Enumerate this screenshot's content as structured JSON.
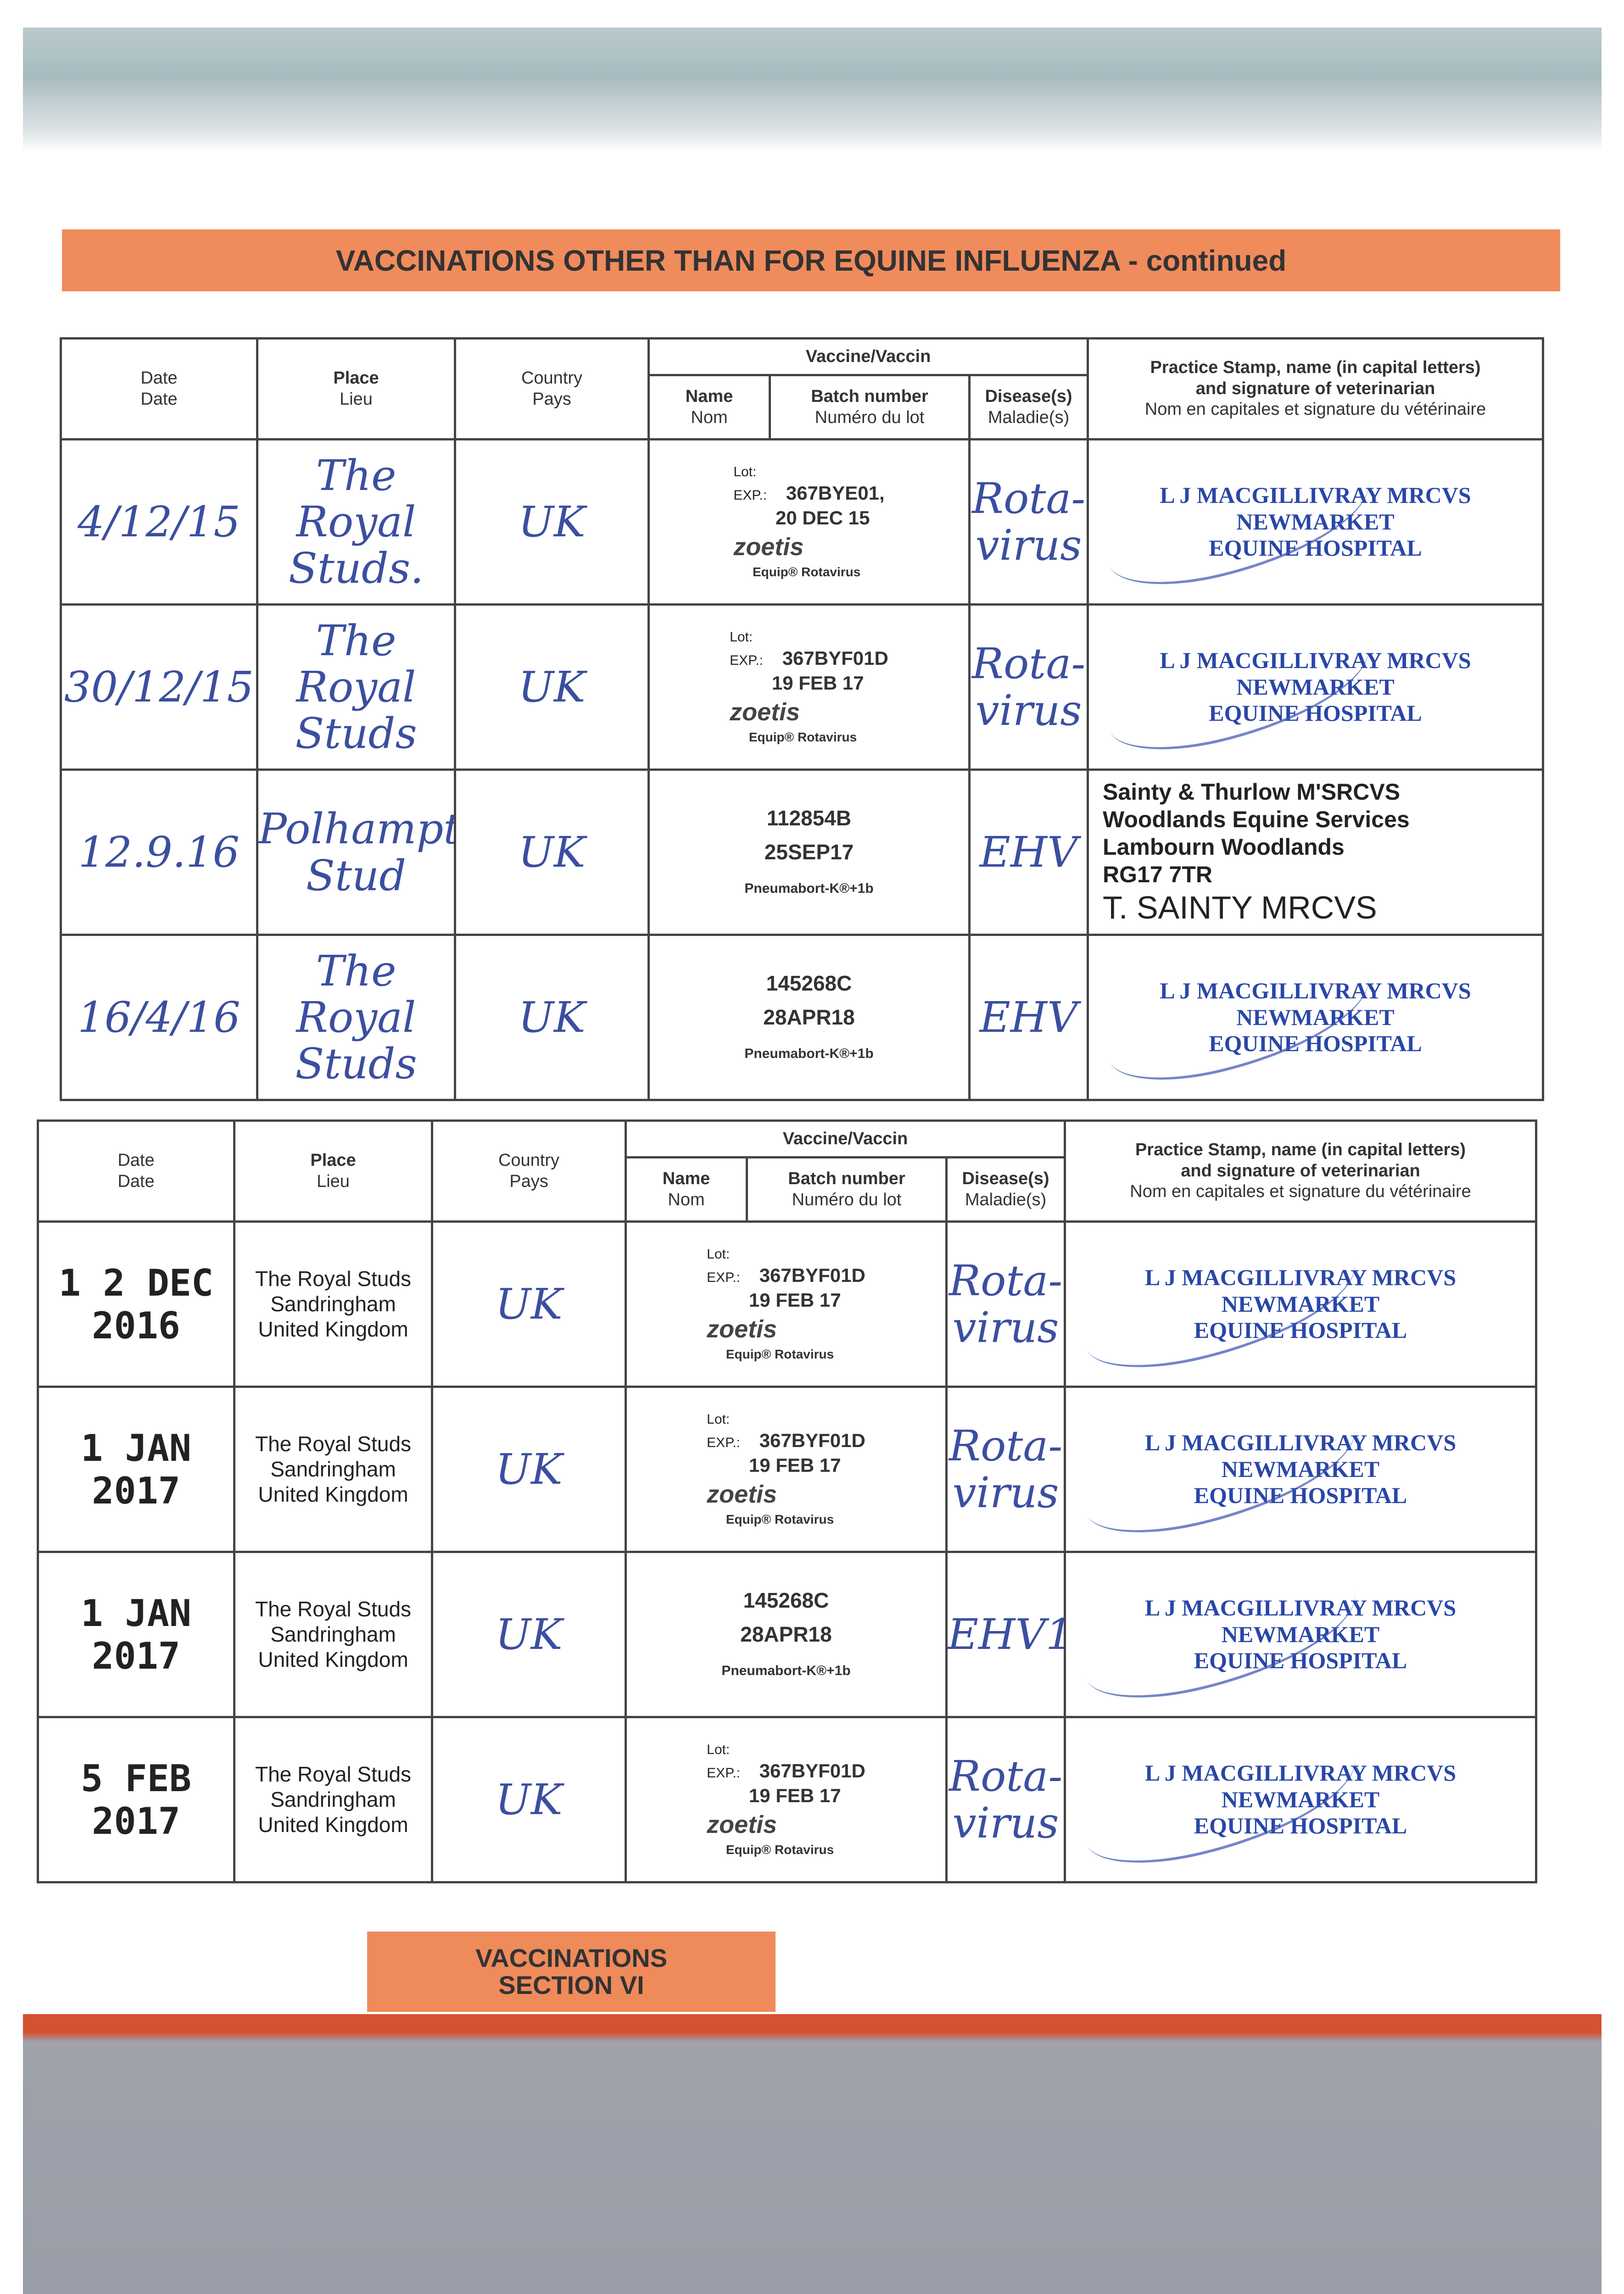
{
  "title": "VACCINATIONS OTHER THAN FOR EQUINE INFLUENZA - continued",
  "headers": {
    "date": "Date",
    "date_fr": "Date",
    "place": "Place",
    "place_fr": "Lieu",
    "country": "Country",
    "country_fr": "Pays",
    "vaccine": "Vaccine/Vaccin",
    "name": "Name",
    "name_fr": "Nom",
    "batch": "Batch number",
    "batch_fr": "Numéro du lot",
    "disease": "Disease(s)",
    "disease_fr": "Maladie(s)",
    "stamp1": "Practice Stamp, name (in capital letters)",
    "stamp2": "and signature of veterinarian",
    "stamp_fr": "Nom en capitales et signature du vétérinaire"
  },
  "label": {
    "lot": "Lot:",
    "exp": "EXP.:",
    "brand": "zoetis",
    "product": "Equip® Rotavirus",
    "pneumabort": "Pneumabort-K®+1b"
  },
  "table1": [
    {
      "date": "4/12/15",
      "place": "The Royal Studs.",
      "country": "UK",
      "batch": "367BYE01,",
      "exp": "20 DEC 15",
      "disease": "Rota-virus",
      "vet": [
        "L J MACGILLIVRAY MRCVS",
        "NEWMARKET",
        "EQUINE HOSPITAL"
      ]
    },
    {
      "date": "30/12/15",
      "place": "The Royal Studs",
      "country": "UK",
      "batch": "367BYF01D",
      "exp": "19 FEB 17",
      "disease": "Rota-virus",
      "vet": [
        "L J MACGILLIVRAY MRCVS",
        "NEWMARKET",
        "EQUINE HOSPITAL"
      ]
    },
    {
      "date": "12.9.16",
      "place": "Polhampton Stud",
      "country": "UK",
      "batch": "112854B",
      "exp": "25SEP17",
      "disease": "EHV",
      "vet": [
        "Sainty & Thurlow M'SRCVS",
        "Woodlands Equine Services",
        "Lambourn Woodlands",
        "RG17 7TR",
        "T. SAINTY MRCVS"
      ]
    },
    {
      "date": "16/4/16",
      "place": "The Royal Studs",
      "country": "UK",
      "batch": "145268C",
      "exp": "28APR18",
      "disease": "EHV",
      "vet": [
        "L J MACGILLIVRAY MRCVS",
        "NEWMARKET",
        "EQUINE HOSPITAL"
      ]
    }
  ],
  "table2": [
    {
      "date": "1 2 DEC 2016",
      "place": [
        "The Royal Studs",
        "Sandringham",
        "United Kingdom"
      ],
      "country": "UK",
      "batch": "367BYF01D",
      "exp": "19 FEB 17",
      "disease": "Rota-virus",
      "vet": [
        "L J MACGILLIVRAY MRCVS",
        "NEWMARKET",
        "EQUINE HOSPITAL"
      ]
    },
    {
      "date": "1 JAN 2017",
      "place": [
        "The Royal Studs",
        "Sandringham",
        "United Kingdom"
      ],
      "country": "UK",
      "batch": "367BYF01D",
      "exp": "19 FEB 17",
      "disease": "Rota-virus",
      "vet": [
        "L J MACGILLIVRAY MRCVS",
        "NEWMARKET",
        "EQUINE HOSPITAL"
      ]
    },
    {
      "date": "1 JAN 2017",
      "place": [
        "The Royal Studs",
        "Sandringham",
        "United Kingdom"
      ],
      "country": "UK",
      "batch": "145268C",
      "exp": "28APR18",
      "disease": "EHV1",
      "vet": [
        "L J MACGILLIVRAY MRCVS",
        "NEWMARKET",
        "EQUINE HOSPITAL"
      ]
    },
    {
      "date": "5 FEB 2017",
      "place": [
        "The Royal Studs",
        "Sandringham",
        "United Kingdom"
      ],
      "country": "UK",
      "batch": "367BYF01D",
      "exp": "19 FEB 17",
      "disease": "Rota-virus",
      "vet": [
        "L J MACGILLIVRAY MRCVS",
        "NEWMARKET",
        "EQUINE HOSPITAL"
      ]
    }
  ],
  "section": {
    "line1": "VACCINATIONS",
    "line2": "SECTION VI"
  }
}
